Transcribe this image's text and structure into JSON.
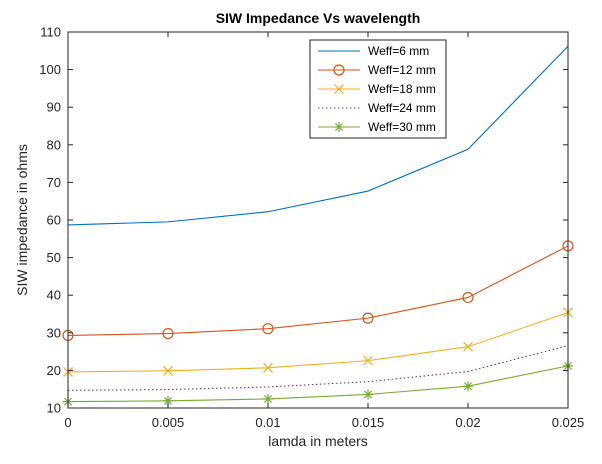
{
  "chart_data": {
    "type": "line",
    "title": "SIW Impedance Vs wavelength",
    "xlabel": "lamda in meters",
    "ylabel": "SIW impedance in ohms",
    "xlim": [
      0,
      0.025
    ],
    "ylim": [
      10,
      110
    ],
    "x_ticks": [
      "0",
      "0.005",
      "0.01",
      "0.015",
      "0.02",
      "0.025"
    ],
    "y_ticks": [
      "10",
      "20",
      "30",
      "40",
      "50",
      "60",
      "70",
      "80",
      "90",
      "100",
      "110"
    ],
    "x": [
      0,
      0.005,
      0.01,
      0.015,
      0.02,
      0.025
    ],
    "grid": false,
    "legend_position": "top-right",
    "series": [
      {
        "name": "Weff=6 mm",
        "values": [
          58.7,
          59.5,
          62.2,
          67.7,
          78.8,
          106.2
        ],
        "color": "#0072BD",
        "marker": "none",
        "line": "solid"
      },
      {
        "name": "Weff=12 mm",
        "values": [
          29.3,
          29.8,
          31.1,
          33.9,
          39.4,
          53.1
        ],
        "color": "#D95319",
        "marker": "circle",
        "line": "solid"
      },
      {
        "name": "Weff=18 mm",
        "values": [
          19.6,
          19.9,
          20.7,
          22.6,
          26.3,
          35.4
        ],
        "color": "#EDB120",
        "marker": "x",
        "line": "solid"
      },
      {
        "name": "Weff=24 mm",
        "values": [
          14.7,
          14.9,
          15.6,
          17.0,
          19.7,
          26.6
        ],
        "color": "#7E2F8E",
        "marker": "none",
        "line": "dotted"
      },
      {
        "name": "Weff=30 mm",
        "values": [
          11.7,
          11.9,
          12.4,
          13.6,
          15.8,
          21.2
        ],
        "color": "#77AC30",
        "marker": "star",
        "line": "solid"
      }
    ]
  }
}
